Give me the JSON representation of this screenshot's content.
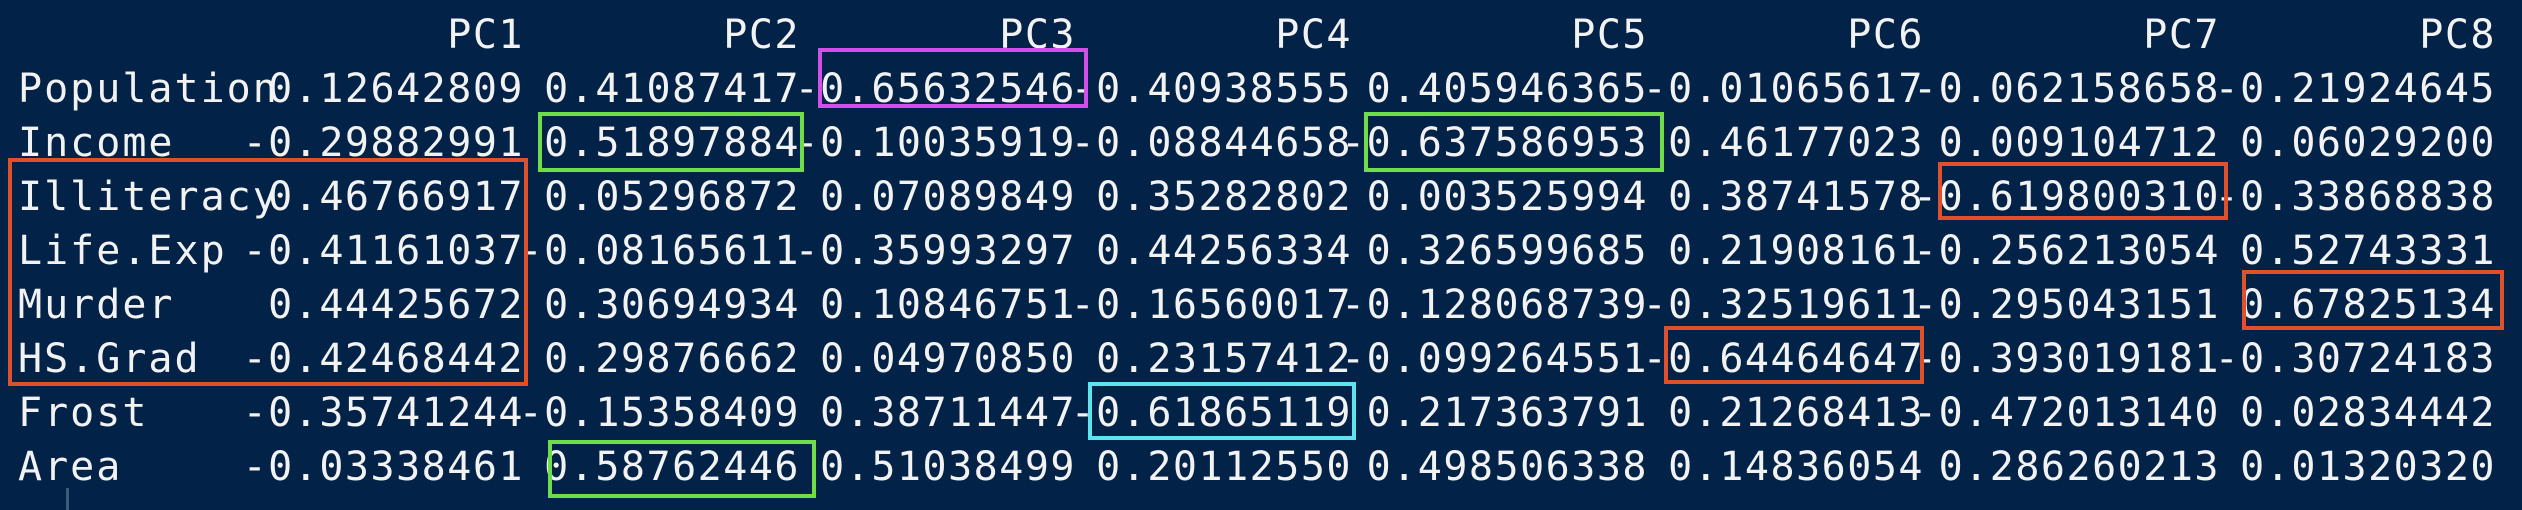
{
  "console": {
    "columns": [
      "PC1",
      "PC2",
      "PC3",
      "PC4",
      "PC5",
      "PC6",
      "PC7",
      "PC8"
    ],
    "rows": [
      {
        "label": "Population",
        "values": [
          "0.12642809",
          "0.41087417",
          "-0.65632546",
          "-0.40938555",
          "0.405946365",
          "-0.01065617",
          "-0.062158658",
          "-0.21924645"
        ]
      },
      {
        "label": "Income",
        "values": [
          "-0.29882991",
          "0.51897884",
          "-0.10035919",
          "-0.08844658",
          "-0.637586953",
          "0.46177023",
          "0.009104712",
          "0.06029200"
        ]
      },
      {
        "label": "Illiteracy",
        "values": [
          "0.46766917",
          "0.05296872",
          "0.07089849",
          "0.35282802",
          "0.003525994",
          "0.38741578",
          "-0.619800310",
          "-0.33868838"
        ]
      },
      {
        "label": "Life.Exp",
        "values": [
          "-0.41161037",
          "-0.08165611",
          "-0.35993297",
          "0.44256334",
          "0.326599685",
          "0.21908161",
          "-0.256213054",
          "0.52743331"
        ]
      },
      {
        "label": "Murder",
        "values": [
          "0.44425672",
          "0.30694934",
          "0.10846751",
          "-0.16560017",
          "-0.128068739",
          "-0.32519611",
          "-0.295043151",
          "0.67825134"
        ]
      },
      {
        "label": "HS.Grad",
        "values": [
          "-0.42468442",
          "0.29876662",
          "0.04970850",
          "0.23157412",
          "-0.099264551",
          "-0.64464647",
          "-0.393019181",
          "-0.30724183"
        ]
      },
      {
        "label": "Frost",
        "values": [
          "-0.35741244",
          "-0.15358409",
          "0.38711447",
          "-0.61865119",
          "0.217363791",
          "0.21268413",
          "-0.472013140",
          "0.02834442"
        ]
      },
      {
        "label": "Area",
        "values": [
          "-0.03338461",
          "0.58762446",
          "0.51038499",
          "0.20112550",
          "0.498506338",
          "0.14836054",
          "0.286260213",
          "0.01320320"
        ]
      }
    ]
  },
  "highlights": [
    {
      "name": "population-pc3",
      "color": "#d44ee8"
    },
    {
      "name": "income-pc2",
      "color": "#6fdc4a"
    },
    {
      "name": "income-pc5",
      "color": "#6fdc4a"
    },
    {
      "name": "area-pc2",
      "color": "#6fdc4a"
    },
    {
      "name": "frost-pc4",
      "color": "#5fe3ef"
    },
    {
      "name": "pc1-illiteracy-to-hsgrad",
      "color": "#e0502a"
    },
    {
      "name": "illiteracy-pc7",
      "color": "#e0502a"
    },
    {
      "name": "hsgrad-pc6",
      "color": "#e0502a"
    },
    {
      "name": "murder-pc8",
      "color": "#e0502a"
    }
  ],
  "colors": {
    "background": "#022247",
    "text": "#f2f2f2"
  }
}
